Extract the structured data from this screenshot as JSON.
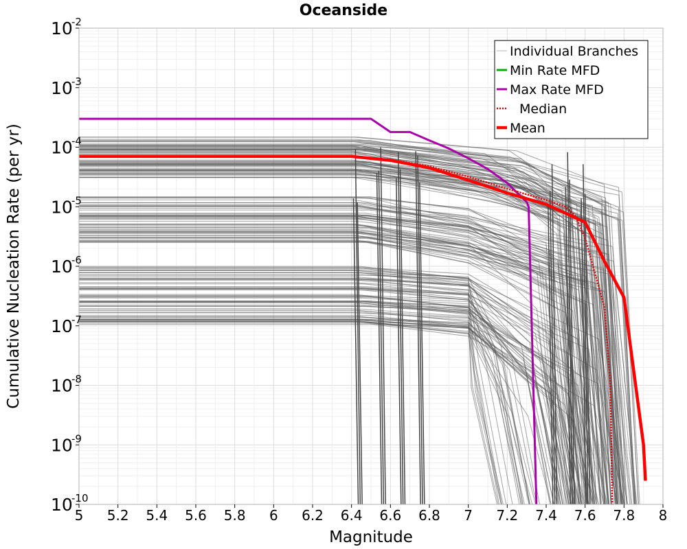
{
  "chart_data": {
    "type": "line",
    "title": "Oceanside",
    "xlabel": "Magnitude",
    "ylabel": "Cumulative Nucleation Rate (per yr)",
    "xlim": [
      5,
      8
    ],
    "ylim": [
      1e-10,
      0.01
    ],
    "yscale": "log",
    "grid": true,
    "legend_position": "top-right",
    "x_ticks": [
      "5",
      "5.2",
      "5.4",
      "5.6",
      "5.8",
      "6",
      "6.2",
      "6.4",
      "6.6",
      "6.8",
      "7",
      "7.2",
      "7.4",
      "7.6",
      "7.8",
      "8"
    ],
    "y_ticks": [
      {
        "base": "10",
        "exp": "-2"
      },
      {
        "base": "10",
        "exp": "-3"
      },
      {
        "base": "10",
        "exp": "-4"
      },
      {
        "base": "10",
        "exp": "-5"
      },
      {
        "base": "10",
        "exp": "-6"
      },
      {
        "base": "10",
        "exp": "-7"
      },
      {
        "base": "10",
        "exp": "-8"
      },
      {
        "base": "10",
        "exp": "-9"
      },
      {
        "base": "10",
        "exp": "-10"
      }
    ],
    "legend": [
      {
        "label": "Individual Branches",
        "color": "#b4b4b4",
        "style": "thin"
      },
      {
        "label": "Min Rate MFD",
        "color": "#00b000",
        "style": "solid"
      },
      {
        "label": "Max Rate MFD",
        "color": "#aa00aa",
        "style": "solid"
      },
      {
        "label": "Median",
        "color": "#ee0000",
        "style": "dotted"
      },
      {
        "label": "Mean",
        "color": "#ff0000",
        "style": "thick"
      }
    ],
    "series": [
      {
        "name": "Max Rate MFD",
        "color": "#aa00aa",
        "x": [
          5.0,
          6.5,
          6.6,
          6.7,
          6.8,
          6.9,
          7.0,
          7.1,
          7.2,
          7.3,
          7.31,
          7.35
        ],
        "y": [
          0.0003,
          0.0003,
          0.00018,
          0.00018,
          0.00013,
          9.5e-05,
          6.5e-05,
          4.3e-05,
          2.5e-05,
          1.2e-05,
          1e-05,
          1e-10
        ]
      },
      {
        "name": "Median",
        "color": "#ee0000",
        "x": [
          5.0,
          6.4,
          6.6,
          6.8,
          7.0,
          7.2,
          7.4,
          7.5,
          7.55,
          7.6,
          7.7,
          7.73,
          7.74
        ],
        "y": [
          7e-05,
          7e-05,
          6.2e-05,
          4.8e-05,
          3.2e-05,
          2e-05,
          1.3e-05,
          1e-05,
          7e-06,
          3e-06,
          2e-07,
          1e-08,
          1e-10
        ]
      },
      {
        "name": "Mean",
        "color": "#ff0000",
        "x": [
          5.0,
          6.4,
          6.6,
          6.8,
          7.0,
          7.2,
          7.4,
          7.6,
          7.7,
          7.8,
          7.9,
          7.91
        ],
        "y": [
          7e-05,
          7e-05,
          6e-05,
          4.5e-05,
          2.8e-05,
          1.7e-05,
          1.1e-05,
          5.5e-06,
          1.2e-06,
          3e-07,
          1e-09,
          2.5e-10
        ]
      }
    ],
    "branches": {
      "name": "Individual Branches",
      "color": "#5a5a5a",
      "rate_bands": [
        [
          0.00015,
          3e-05
        ],
        [
          1.5e-05,
          2.5e-06
        ],
        [
          1e-06,
          1e-07
        ]
      ],
      "drop_magnitudes": [
        6.43,
        6.55,
        6.65,
        6.75,
        7.43,
        7.52,
        7.6
      ]
    }
  }
}
